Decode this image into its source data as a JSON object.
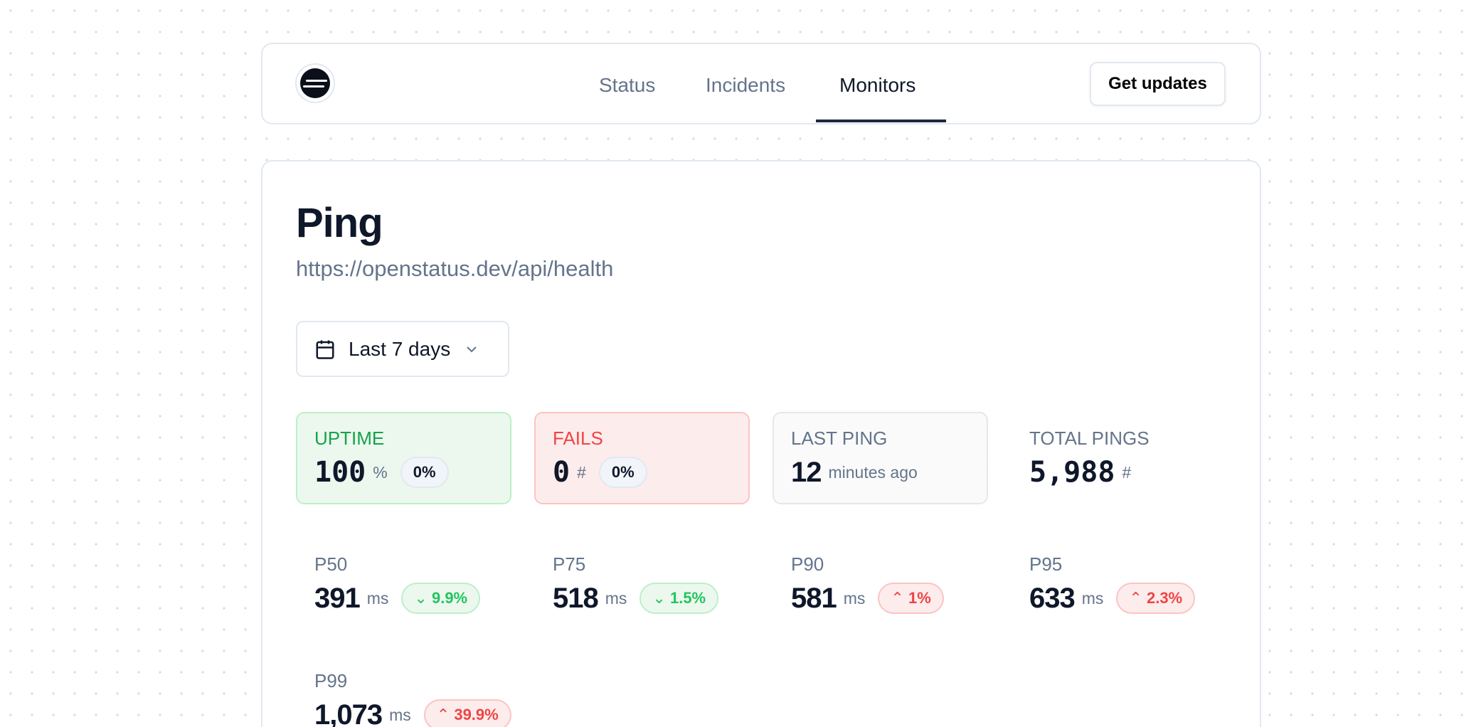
{
  "nav": {
    "items": [
      {
        "label": "Status",
        "active": false
      },
      {
        "label": "Incidents",
        "active": false
      },
      {
        "label": "Monitors",
        "active": true
      }
    ],
    "cta": "Get updates"
  },
  "monitor": {
    "title": "Ping",
    "url": "https://openstatus.dev/api/health",
    "range": "Last 7 days"
  },
  "stats": {
    "uptime": {
      "label": "UPTIME",
      "value": "100",
      "unit": "%",
      "change": "0%"
    },
    "fails": {
      "label": "FAILS",
      "value": "0",
      "unit": "#",
      "change": "0%"
    },
    "last_ping": {
      "label": "LAST PING",
      "value": "12",
      "unit": "minutes ago"
    },
    "total_pings": {
      "label": "TOTAL PINGS",
      "value": "5,988",
      "unit": "#"
    }
  },
  "percentiles": [
    {
      "label": "P50",
      "value": "391",
      "unit": "ms",
      "change": "9.9%",
      "direction": "down"
    },
    {
      "label": "P75",
      "value": "518",
      "unit": "ms",
      "change": "1.5%",
      "direction": "down"
    },
    {
      "label": "P90",
      "value": "581",
      "unit": "ms",
      "change": "1%",
      "direction": "up"
    },
    {
      "label": "P95",
      "value": "633",
      "unit": "ms",
      "change": "2.3%",
      "direction": "up"
    },
    {
      "label": "P99",
      "value": "1,073",
      "unit": "ms",
      "change": "39.9%",
      "direction": "up"
    }
  ],
  "colors": {
    "success": "#16a34a",
    "danger": "#ef4444",
    "muted": "#64748b"
  }
}
